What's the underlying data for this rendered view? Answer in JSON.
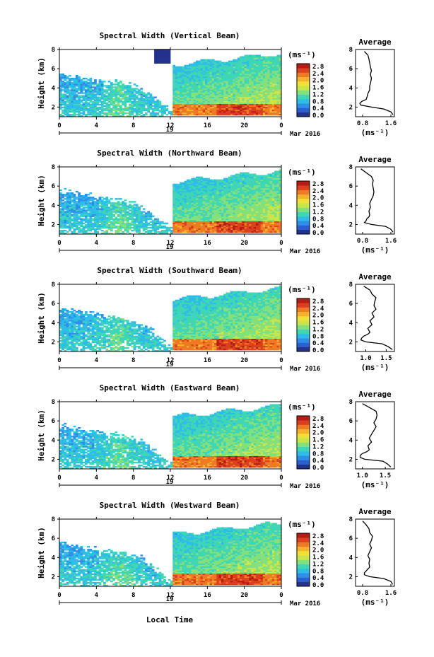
{
  "figure": {
    "x_axis_label": "Local Time",
    "date_label": "19",
    "month_label": "Mar 2016",
    "colorbar_unit": "(ms⁻¹)",
    "colorbar_ticks": [
      "2.8",
      "2.4",
      "2.0",
      "1.6",
      "1.2",
      "0.8",
      "0.4",
      "0.0"
    ],
    "colors": [
      "#24318d",
      "#2b5fd0",
      "#2e8fe8",
      "#2dbde6",
      "#3fd6b5",
      "#84e07c",
      "#c8e64a",
      "#f2e03a",
      "#f6b12d",
      "#ee7a24",
      "#dc3f1e",
      "#b51c14"
    ]
  },
  "chart_data": [
    {
      "type": "heatmap",
      "title": "Spectral Width (Vertical Beam)",
      "ylabel": "Height (km)",
      "xlabel": "Local Time",
      "x_ticks": [
        "0",
        "4",
        "8",
        "12",
        "16",
        "20",
        "0"
      ],
      "y_ticks": [
        "2",
        "4",
        "6",
        "8"
      ],
      "xlim": [
        0,
        24
      ],
      "ylim": [
        1,
        8
      ],
      "colorbar": {
        "unit": "(ms⁻¹)",
        "ticks": [
          "2.8",
          "2.4",
          "2.0",
          "1.6",
          "1.2",
          "0.8",
          "0.4",
          "0.0"
        ]
      },
      "average_profile": {
        "title": "Average",
        "xlabel": "(ms⁻¹)",
        "x_ticks": [
          "0.8",
          "1.6"
        ],
        "y_ticks": [
          "2",
          "4",
          "6",
          "8"
        ],
        "xlim": [
          0.6,
          1.7
        ],
        "height": [
          1.2,
          1.5,
          1.8,
          2.0,
          2.2,
          2.4,
          2.6,
          2.8,
          3.0,
          3.4,
          3.8,
          4.2,
          4.6,
          5.0,
          5.4,
          5.8,
          6.2,
          6.6,
          7.0,
          7.4,
          7.8
        ],
        "width": [
          1.66,
          1.6,
          1.4,
          1.05,
          0.75,
          0.72,
          0.78,
          0.9,
          0.92,
          0.95,
          1.0,
          1.0,
          1.03,
          1.05,
          1.02,
          1.05,
          1.02,
          1.0,
          0.98,
          0.95,
          0.85
        ]
      }
    },
    {
      "type": "heatmap",
      "title": "Spectral Width (Northward Beam)",
      "ylabel": "Height (km)",
      "xlabel": "Local Time",
      "x_ticks": [
        "0",
        "4",
        "8",
        "12",
        "16",
        "20",
        "0"
      ],
      "y_ticks": [
        "2",
        "4",
        "6",
        "8"
      ],
      "xlim": [
        0,
        24
      ],
      "ylim": [
        1,
        8
      ],
      "colorbar": {
        "unit": "(ms⁻¹)",
        "ticks": [
          "2.8",
          "2.4",
          "2.0",
          "1.6",
          "1.2",
          "0.8",
          "0.4",
          "0.0"
        ]
      },
      "average_profile": {
        "title": "Average",
        "xlabel": "(ms⁻¹)",
        "x_ticks": [
          "0.8",
          "1.6"
        ],
        "y_ticks": [
          "2",
          "4",
          "6",
          "8"
        ],
        "xlim": [
          0.6,
          1.7
        ],
        "height": [
          1.2,
          1.5,
          1.8,
          2.0,
          2.2,
          2.4,
          2.6,
          2.8,
          3.0,
          3.4,
          3.8,
          4.2,
          4.6,
          5.0,
          5.4,
          5.8,
          6.2,
          6.6,
          7.0,
          7.4,
          7.8
        ],
        "width": [
          1.66,
          1.6,
          1.45,
          1.05,
          0.85,
          0.9,
          0.92,
          0.98,
          1.0,
          0.98,
          1.02,
          1.0,
          1.05,
          1.1,
          1.12,
          1.1,
          1.08,
          1.1,
          1.05,
          0.9,
          0.75
        ]
      }
    },
    {
      "type": "heatmap",
      "title": "Spectral Width (Southward Beam)",
      "ylabel": "Height (km)",
      "xlabel": "Local Time",
      "x_ticks": [
        "0",
        "4",
        "8",
        "12",
        "16",
        "20",
        "0"
      ],
      "y_ticks": [
        "2",
        "4",
        "6",
        "8"
      ],
      "xlim": [
        0,
        24
      ],
      "ylim": [
        1,
        8
      ],
      "colorbar": {
        "unit": "(ms⁻¹)",
        "ticks": [
          "2.8",
          "2.4",
          "2.0",
          "1.6",
          "1.2",
          "0.8",
          "0.4",
          "0.0"
        ]
      },
      "average_profile": {
        "title": "Average",
        "xlabel": "(ms⁻¹)",
        "x_ticks": [
          "1.0",
          "1.5"
        ],
        "y_ticks": [
          "2",
          "4",
          "6",
          "8"
        ],
        "xlim": [
          0.75,
          1.7
        ],
        "height": [
          1.2,
          1.5,
          1.8,
          2.0,
          2.2,
          2.4,
          2.6,
          2.8,
          3.0,
          3.4,
          3.8,
          4.2,
          4.6,
          5.0,
          5.4,
          5.8,
          6.2,
          6.6,
          7.0,
          7.4,
          7.8
        ],
        "width": [
          1.65,
          1.55,
          1.4,
          1.0,
          0.88,
          0.9,
          0.95,
          1.05,
          1.1,
          1.05,
          1.15,
          1.1,
          1.2,
          1.15,
          1.25,
          1.2,
          1.22,
          1.25,
          1.15,
          1.1,
          0.95
        ]
      }
    },
    {
      "type": "heatmap",
      "title": "Spectral Width (Eastward Beam)",
      "ylabel": "Height (km)",
      "xlabel": "Local Time",
      "x_ticks": [
        "0",
        "4",
        "8",
        "12",
        "16",
        "20",
        "0"
      ],
      "y_ticks": [
        "2",
        "4",
        "6",
        "8"
      ],
      "xlim": [
        0,
        24
      ],
      "ylim": [
        1,
        8
      ],
      "colorbar": {
        "unit": "(ms⁻¹)",
        "ticks": [
          "2.8",
          "2.4",
          "2.0",
          "1.6",
          "1.2",
          "0.8",
          "0.4",
          "0.0"
        ]
      },
      "average_profile": {
        "title": "Average",
        "xlabel": "(ms⁻¹)",
        "x_ticks": [
          "1.0",
          "1.5"
        ],
        "y_ticks": [
          "2",
          "4",
          "6",
          "8"
        ],
        "xlim": [
          0.85,
          1.7
        ],
        "height": [
          1.2,
          1.5,
          1.8,
          2.0,
          2.2,
          2.4,
          2.6,
          2.8,
          3.0,
          3.4,
          3.8,
          4.2,
          4.6,
          5.0,
          5.4,
          5.8,
          6.2,
          6.6,
          7.0,
          7.4,
          7.8
        ],
        "width": [
          1.62,
          1.55,
          1.45,
          1.05,
          0.95,
          0.95,
          1.0,
          1.1,
          1.15,
          1.12,
          1.2,
          1.15,
          1.2,
          1.25,
          1.3,
          1.25,
          1.3,
          1.32,
          1.3,
          1.15,
          1.0
        ]
      }
    },
    {
      "type": "heatmap",
      "title": "Spectral Width (Westward Beam)",
      "ylabel": "Height (km)",
      "xlabel": "Local Time",
      "x_ticks": [
        "0",
        "4",
        "8",
        "12",
        "16",
        "20",
        "0"
      ],
      "y_ticks": [
        "2",
        "4",
        "6",
        "8"
      ],
      "xlim": [
        0,
        24
      ],
      "ylim": [
        1,
        8
      ],
      "colorbar": {
        "unit": "(ms⁻¹)",
        "ticks": [
          "2.8",
          "2.4",
          "2.0",
          "1.6",
          "1.2",
          "0.8",
          "0.4",
          "0.0"
        ]
      },
      "average_profile": {
        "title": "Average",
        "xlabel": "(ms⁻¹)",
        "x_ticks": [
          "0.8",
          "1.6"
        ],
        "y_ticks": [
          "2",
          "4",
          "6",
          "8"
        ],
        "xlim": [
          0.6,
          1.7
        ],
        "height": [
          1.2,
          1.5,
          1.8,
          2.0,
          2.2,
          2.4,
          2.6,
          2.8,
          3.0,
          3.4,
          3.8,
          4.2,
          4.6,
          5.0,
          5.4,
          5.8,
          6.2,
          6.6,
          7.0,
          7.4,
          7.8
        ],
        "width": [
          1.65,
          1.6,
          1.4,
          1.0,
          0.85,
          0.85,
          0.9,
          0.95,
          1.0,
          0.98,
          1.0,
          0.95,
          1.0,
          1.05,
          1.0,
          1.05,
          1.08,
          1.0,
          0.98,
          0.9,
          0.8
        ]
      }
    }
  ]
}
